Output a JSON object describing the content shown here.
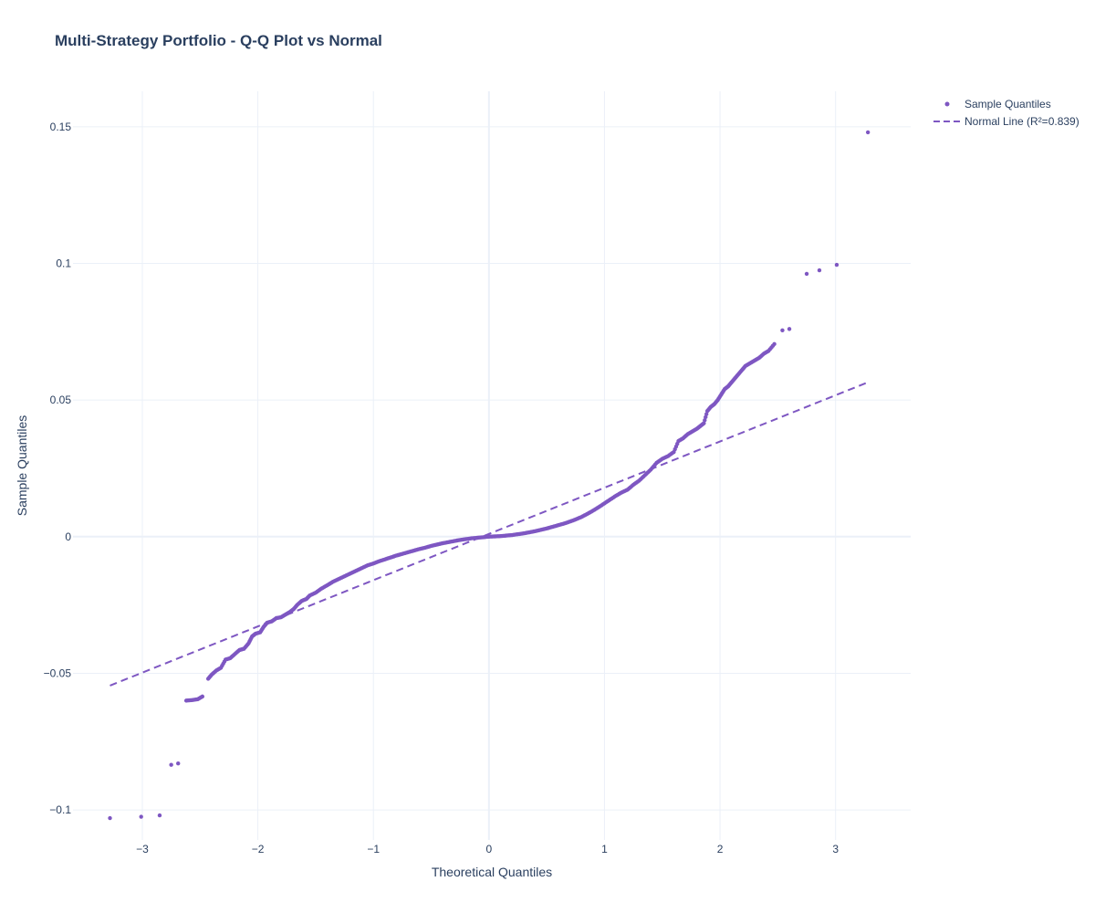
{
  "chart_data": {
    "type": "scatter",
    "title": "Multi-Strategy Portfolio - Q-Q Plot vs Normal",
    "xlabel": "Theoretical Quantiles",
    "ylabel": "Sample Quantiles",
    "xlim": [
      -3.6,
      3.65
    ],
    "ylim": [
      -0.111,
      0.163
    ],
    "xticks": [
      -3,
      -2,
      -1,
      0,
      1,
      2,
      3
    ],
    "xtick_labels": [
      "−3",
      "−2",
      "−1",
      "0",
      "1",
      "2",
      "3"
    ],
    "yticks": [
      -0.1,
      -0.05,
      0,
      0.05,
      0.1,
      0.15
    ],
    "ytick_labels": [
      "−0.1",
      "−0.05",
      "0",
      "0.05",
      "0.1",
      "0.15"
    ],
    "grid": true,
    "legend_position": "top-right",
    "color": "#7e57c2",
    "series": [
      {
        "name": "Sample Quantiles",
        "mode": "markers",
        "points": [
          [
            -3.28,
            -0.103
          ],
          [
            -3.01,
            -0.1025
          ],
          [
            -2.85,
            -0.102
          ],
          [
            -2.75,
            -0.0835
          ],
          [
            -2.69,
            -0.083
          ],
          [
            -2.62,
            -0.06
          ],
          [
            -2.57,
            -0.0598
          ],
          [
            -2.52,
            -0.0595
          ],
          [
            -2.48,
            -0.0585
          ],
          [
            -2.43,
            -0.052
          ],
          [
            -2.4,
            -0.0505
          ],
          [
            -2.36,
            -0.049
          ],
          [
            -2.32,
            -0.048
          ],
          [
            -2.28,
            -0.045
          ],
          [
            -2.24,
            -0.0445
          ],
          [
            -2.2,
            -0.043
          ],
          [
            -2.16,
            -0.0415
          ],
          [
            -2.12,
            -0.041
          ],
          [
            -2.08,
            -0.039
          ],
          [
            -2.05,
            -0.0365
          ],
          [
            -2.02,
            -0.0355
          ],
          [
            -1.98,
            -0.035
          ],
          [
            -1.95,
            -0.033
          ],
          [
            -1.92,
            -0.0315
          ],
          [
            -1.88,
            -0.031
          ],
          [
            -1.84,
            -0.0298
          ],
          [
            -1.8,
            -0.0295
          ],
          [
            -1.76,
            -0.0285
          ],
          [
            -1.72,
            -0.0275
          ],
          [
            -1.69,
            -0.0265
          ],
          [
            -1.66,
            -0.025
          ],
          [
            -1.62,
            -0.0235
          ],
          [
            -1.58,
            -0.0228
          ],
          [
            -1.55,
            -0.0215
          ],
          [
            -1.5,
            -0.0205
          ],
          [
            -1.45,
            -0.019
          ],
          [
            -1.4,
            -0.0178
          ],
          [
            -1.35,
            -0.0165
          ],
          [
            -1.3,
            -0.0155
          ],
          [
            -1.25,
            -0.0145
          ],
          [
            -1.2,
            -0.0135
          ],
          [
            -1.15,
            -0.0125
          ],
          [
            -1.1,
            -0.0115
          ],
          [
            -1.05,
            -0.0105
          ],
          [
            -1.0,
            -0.0098
          ],
          [
            -0.95,
            -0.009
          ],
          [
            -0.9,
            -0.0083
          ],
          [
            -0.85,
            -0.0076
          ],
          [
            -0.8,
            -0.0069
          ],
          [
            -0.75,
            -0.0063
          ],
          [
            -0.7,
            -0.0057
          ],
          [
            -0.65,
            -0.0051
          ],
          [
            -0.6,
            -0.0045
          ],
          [
            -0.55,
            -0.004
          ],
          [
            -0.5,
            -0.0034
          ],
          [
            -0.45,
            -0.0029
          ],
          [
            -0.4,
            -0.0024
          ],
          [
            -0.35,
            -0.002
          ],
          [
            -0.3,
            -0.0016
          ],
          [
            -0.25,
            -0.0012
          ],
          [
            -0.2,
            -0.0009
          ],
          [
            -0.15,
            -0.0006
          ],
          [
            -0.1,
            -0.0004
          ],
          [
            -0.05,
            -0.0002
          ],
          [
            0.0,
            0.0
          ],
          [
            0.05,
            0.0001
          ],
          [
            0.1,
            0.0002
          ],
          [
            0.15,
            0.0004
          ],
          [
            0.2,
            0.0006
          ],
          [
            0.25,
            0.0009
          ],
          [
            0.3,
            0.0012
          ],
          [
            0.35,
            0.0016
          ],
          [
            0.4,
            0.002
          ],
          [
            0.45,
            0.0025
          ],
          [
            0.5,
            0.003
          ],
          [
            0.55,
            0.0036
          ],
          [
            0.6,
            0.0042
          ],
          [
            0.65,
            0.0048
          ],
          [
            0.7,
            0.0055
          ],
          [
            0.75,
            0.0063
          ],
          [
            0.8,
            0.0072
          ],
          [
            0.85,
            0.0083
          ],
          [
            0.9,
            0.0095
          ],
          [
            0.95,
            0.0108
          ],
          [
            1.0,
            0.0122
          ],
          [
            1.05,
            0.0136
          ],
          [
            1.1,
            0.015
          ],
          [
            1.15,
            0.0162
          ],
          [
            1.2,
            0.0172
          ],
          [
            1.25,
            0.019
          ],
          [
            1.3,
            0.0205
          ],
          [
            1.35,
            0.0225
          ],
          [
            1.4,
            0.0245
          ],
          [
            1.45,
            0.027
          ],
          [
            1.5,
            0.0285
          ],
          [
            1.55,
            0.0295
          ],
          [
            1.6,
            0.031
          ],
          [
            1.64,
            0.035
          ],
          [
            1.68,
            0.036
          ],
          [
            1.72,
            0.0375
          ],
          [
            1.76,
            0.0385
          ],
          [
            1.8,
            0.0395
          ],
          [
            1.83,
            0.0405
          ],
          [
            1.86,
            0.0415
          ],
          [
            1.89,
            0.046
          ],
          [
            1.92,
            0.0475
          ],
          [
            1.95,
            0.0485
          ],
          [
            1.98,
            0.05
          ],
          [
            2.01,
            0.052
          ],
          [
            2.04,
            0.054
          ],
          [
            2.07,
            0.055
          ],
          [
            2.1,
            0.0565
          ],
          [
            2.13,
            0.058
          ],
          [
            2.16,
            0.0595
          ],
          [
            2.19,
            0.061
          ],
          [
            2.22,
            0.0625
          ],
          [
            2.26,
            0.0635
          ],
          [
            2.3,
            0.0645
          ],
          [
            2.34,
            0.0655
          ],
          [
            2.38,
            0.067
          ],
          [
            2.42,
            0.068
          ],
          [
            2.47,
            0.0705
          ],
          [
            2.54,
            0.0755
          ],
          [
            2.6,
            0.076
          ],
          [
            2.75,
            0.0962
          ],
          [
            2.86,
            0.0975
          ],
          [
            3.01,
            0.0995
          ],
          [
            3.28,
            0.148
          ]
        ]
      },
      {
        "name": "Normal Line (R²=0.839)",
        "mode": "lines",
        "dash": "dash",
        "x": [
          -3.28,
          3.28
        ],
        "y": [
          -0.0545,
          0.0565
        ]
      }
    ]
  }
}
